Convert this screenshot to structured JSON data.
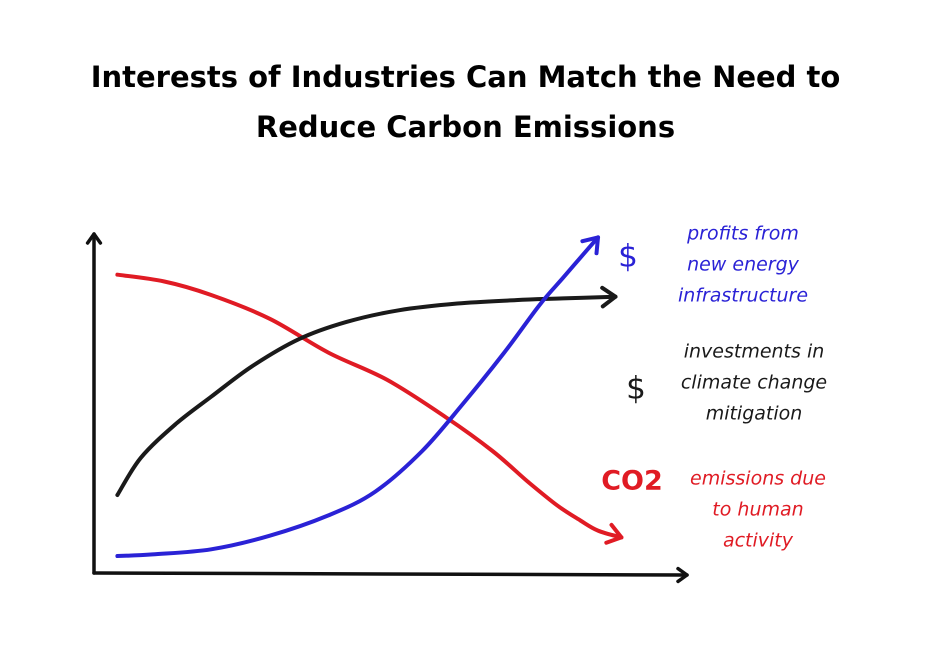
{
  "title": {
    "line1": "Interests of Industries Can Match the Need to",
    "line2": "Reduce Carbon Emissions"
  },
  "colors": {
    "axis": "#111111",
    "profits": "#2a22d6",
    "investments": "#1a1a1a",
    "emissions": "#e01b24"
  },
  "chart_data": {
    "type": "line",
    "title": "Interests of Industries Can Match the Need to Reduce Carbon Emissions",
    "xlabel": "",
    "ylabel": "",
    "xlim": [
      0,
      100
    ],
    "ylim": [
      0,
      100
    ],
    "grid": false,
    "legend": "none",
    "axis_ticks": false,
    "series": [
      {
        "key": "profits",
        "symbol": "$",
        "label_lines": [
          "profits from",
          "new energy",
          "infrastructure"
        ],
        "color": "#2a22d6",
        "x": [
          4,
          10,
          20,
          30,
          40,
          48,
          56,
          63,
          70,
          76,
          80,
          83,
          86
        ],
        "y": [
          5,
          5.5,
          7,
          11,
          17,
          24,
          36,
          50,
          65,
          79,
          87,
          93,
          99
        ]
      },
      {
        "key": "investments",
        "symbol": "$",
        "label_lines": [
          "investments in",
          "climate change",
          "mitigation"
        ],
        "color": "#1a1a1a",
        "x": [
          4,
          8,
          14,
          20,
          27,
          35,
          43,
          52,
          62,
          72,
          80,
          89
        ],
        "y": [
          23,
          34,
          44,
          52,
          61,
          69,
          74,
          77.5,
          79.5,
          80.5,
          81,
          81.5
        ]
      },
      {
        "key": "emissions",
        "symbol": "CO2",
        "label_lines": [
          "emissions due",
          "to human",
          "activity"
        ],
        "color": "#e01b24",
        "x": [
          4,
          12,
          20,
          30,
          40,
          50,
          60,
          68,
          74,
          79,
          83,
          86,
          90
        ],
        "y": [
          88,
          86,
          82,
          75,
          65,
          57,
          46,
          36,
          27,
          20,
          15.5,
          12.5,
          10.5
        ]
      }
    ]
  }
}
